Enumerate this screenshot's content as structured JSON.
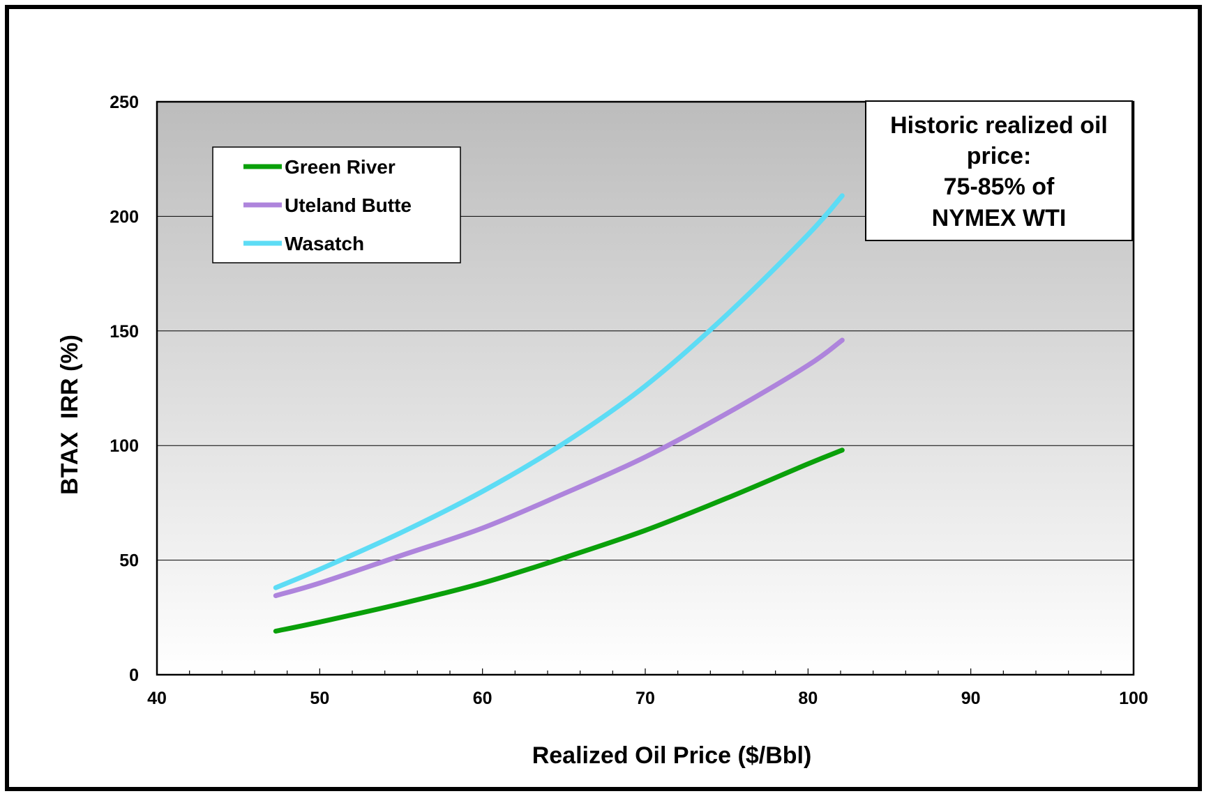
{
  "chart_data": {
    "type": "line",
    "xlabel": "Realized Oil Price ($/Bbl)",
    "ylabel": "BTAX  IRR (%)",
    "xlim": [
      40,
      100
    ],
    "ylim": [
      0,
      250
    ],
    "x_ticks": [
      40,
      50,
      60,
      70,
      80,
      90,
      100
    ],
    "y_ticks": [
      0,
      50,
      100,
      150,
      200,
      250
    ],
    "grid": "horizontal",
    "background": "gradient gray (top) to white (bottom)",
    "legend_position": "top-left",
    "series": [
      {
        "name": "Green River",
        "color": "#0aa00a",
        "points": [
          [
            47.3,
            19
          ],
          [
            50,
            23
          ],
          [
            55,
            31
          ],
          [
            60,
            40
          ],
          [
            65,
            51
          ],
          [
            70,
            63
          ],
          [
            75,
            77
          ],
          [
            80,
            92
          ],
          [
            82.1,
            98
          ]
        ]
      },
      {
        "name": "Uteland Butte",
        "color": "#ae84dc",
        "points": [
          [
            47.3,
            34.5
          ],
          [
            50,
            40
          ],
          [
            55,
            52
          ],
          [
            60,
            64
          ],
          [
            65,
            79
          ],
          [
            70,
            95
          ],
          [
            75,
            114
          ],
          [
            80,
            135
          ],
          [
            82.1,
            146
          ]
        ]
      },
      {
        "name": "Wasatch",
        "color": "#5ddcf5",
        "points": [
          [
            47.3,
            38
          ],
          [
            50,
            46
          ],
          [
            55,
            62
          ],
          [
            60,
            80
          ],
          [
            65,
            101
          ],
          [
            70,
            126
          ],
          [
            75,
            157
          ],
          [
            80,
            192
          ],
          [
            82.1,
            209
          ]
        ]
      }
    ],
    "annotation": [
      "Historic realized oil",
      "price:",
      "75-85% of",
      "NYMEX WTI"
    ]
  }
}
